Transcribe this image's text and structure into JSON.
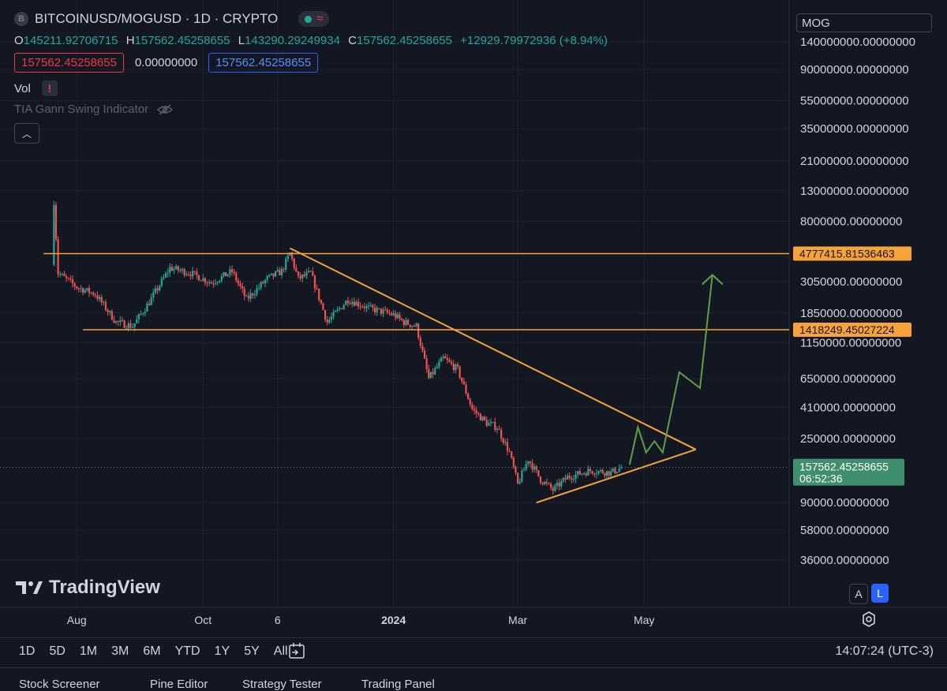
{
  "header": {
    "symbol_title": "BITCOINUSD/MOGUSD · 1D · CRYPTO",
    "ohlc": {
      "o_label": "O",
      "o_value": "145211.92706715",
      "h_label": "H",
      "h_value": "157562.45258655",
      "l_label": "L",
      "l_value": "143290.29249934",
      "c_label": "C",
      "c_value": "157562.45258655",
      "change": "+12929.79972936 (+8.94%)"
    },
    "bid": "157562.45258655",
    "spread": "0.00000000",
    "ask": "157562.45258655"
  },
  "indicators": {
    "vol_label": "Vol",
    "vol_warning": "!",
    "gann_label": "TIA Gann Swing Indicator"
  },
  "price_axis": {
    "currency_label": "MOG",
    "current_price": "157562.45258655",
    "countdown": "06:52:36",
    "resistance_value": "4777415.81536463",
    "support_value": "1418249.45027224"
  },
  "time_axis": {
    "labels": [
      "Aug",
      "Oct",
      "6",
      "2024",
      "Mar",
      "May"
    ]
  },
  "branding": {
    "logo_text": "TradingView"
  },
  "scale_buttons": {
    "auto": "A",
    "log": "L"
  },
  "bottom_bar": {
    "ranges": [
      "1D",
      "5D",
      "1M",
      "3M",
      "6M",
      "YTD",
      "1Y",
      "5Y",
      "All"
    ],
    "clock": "14:07:24 (UTC-3)"
  },
  "panels": [
    "Stock Screener",
    "Pine Editor",
    "Strategy Tester",
    "Trading Panel"
  ],
  "colors": {
    "background": "#131722",
    "up": "#26a69a",
    "down": "#ef5350",
    "drawing": "#f7a33a",
    "projection": "#5f9e4a",
    "text": "#d1d4dc"
  },
  "chart_data": {
    "type": "candlestick",
    "title": "BITCOINUSD/MOGUSD · 1D · CRYPTO",
    "y_scale": "log",
    "y_ticks": [
      140000000,
      90000000,
      55000000,
      35000000,
      21000000,
      13000000,
      8000000,
      3050000,
      1850000,
      1150000,
      650000,
      410000,
      250000,
      90000,
      58000,
      36000
    ],
    "y_tick_labels": [
      "140000000.00000000",
      "90000000.00000000",
      "55000000.00000000",
      "35000000.00000000",
      "21000000.00000000",
      "13000000.00000000",
      "8000000.00000000",
      "3050000.00000000",
      "1850000.00000000",
      "1150000.00000000",
      "650000.00000000",
      "410000.00000000",
      "250000.00000000",
      "90000.00000000",
      "58000.00000000",
      "36000.00000000"
    ],
    "x_range": [
      "2023-07-14",
      "2024-06-05"
    ],
    "x_ticks": [
      {
        "date": "2023-08-01",
        "label": "Aug"
      },
      {
        "date": "2023-10-01",
        "label": "Oct"
      },
      {
        "date": "2023-11-06",
        "label": "6"
      },
      {
        "date": "2024-01-01",
        "label": "2024"
      },
      {
        "date": "2024-03-01",
        "label": "Mar"
      },
      {
        "date": "2024-05-01",
        "label": "May"
      }
    ],
    "last_price": 157562.45258655,
    "price_path": [
      [
        "2023-07-20",
        4000000
      ],
      [
        "2023-07-21",
        11000000
      ],
      [
        "2023-07-23",
        3500000
      ],
      [
        "2023-08-01",
        2800000
      ],
      [
        "2023-08-10",
        2500000
      ],
      [
        "2023-08-20",
        1600000
      ],
      [
        "2023-08-28",
        1500000
      ],
      [
        "2023-09-05",
        2200000
      ],
      [
        "2023-09-15",
        3800000
      ],
      [
        "2023-09-25",
        3500000
      ],
      [
        "2023-10-05",
        3000000
      ],
      [
        "2023-10-15",
        3600000
      ],
      [
        "2023-10-22",
        2300000
      ],
      [
        "2023-11-01",
        3200000
      ],
      [
        "2023-11-08",
        3600000
      ],
      [
        "2023-11-12",
        4800000
      ],
      [
        "2023-11-16",
        3200000
      ],
      [
        "2023-11-22",
        3500000
      ],
      [
        "2023-11-30",
        1600000
      ],
      [
        "2023-12-10",
        2300000
      ],
      [
        "2023-12-20",
        2000000
      ],
      [
        "2024-01-01",
        1800000
      ],
      [
        "2024-01-06",
        1600000
      ],
      [
        "2024-01-12",
        1500000
      ],
      [
        "2024-01-18",
        650000
      ],
      [
        "2024-01-25",
        900000
      ],
      [
        "2024-02-01",
        750000
      ],
      [
        "2024-02-08",
        400000
      ],
      [
        "2024-02-15",
        320000
      ],
      [
        "2024-02-20",
        300000
      ],
      [
        "2024-02-26",
        200000
      ],
      [
        "2024-03-01",
        120000
      ],
      [
        "2024-03-06",
        180000
      ],
      [
        "2024-03-12",
        130000
      ],
      [
        "2024-03-18",
        110000
      ],
      [
        "2024-03-25",
        135000
      ],
      [
        "2024-04-05",
        150000
      ],
      [
        "2024-04-15",
        145000
      ],
      [
        "2024-04-20",
        157562
      ]
    ],
    "horizontal_lines": [
      {
        "value": 4777415.81536463,
        "from": "2023-07-16",
        "label": "4777415.81536463"
      },
      {
        "value": 1418249.45027224,
        "from": "2023-08-04",
        "label": "1418249.45027224"
      }
    ],
    "trend_lines": [
      {
        "from": [
          "2023-11-12",
          5200000
        ],
        "to": [
          "2024-05-26",
          210000
        ]
      },
      {
        "from": [
          "2024-03-10",
          90000
        ],
        "to": [
          "2024-05-26",
          210000
        ]
      }
    ],
    "projection_path": [
      [
        "2024-04-24",
        165000
      ],
      [
        "2024-04-28",
        300000
      ],
      [
        "2024-05-02",
        200000
      ],
      [
        "2024-05-06",
        240000
      ],
      [
        "2024-05-10",
        200000
      ],
      [
        "2024-05-18",
        720000
      ],
      [
        "2024-05-28",
        560000
      ],
      [
        "2024-06-03",
        3400000
      ]
    ]
  }
}
